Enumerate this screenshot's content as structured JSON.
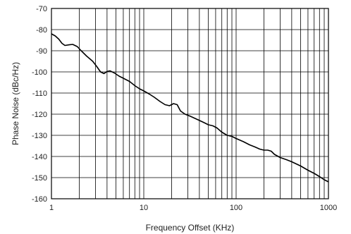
{
  "chart_data": {
    "type": "line",
    "xlabel": "Frequency Offset (KHz)",
    "ylabel": "Phase Noise (dBc/Hz)",
    "xscale": "log",
    "xlim": [
      1,
      1000
    ],
    "ylim": [
      -160,
      -70
    ],
    "grid": true,
    "x_ticks": [
      {
        "value": 1,
        "label": "1"
      },
      {
        "value": 10,
        "label": "10"
      },
      {
        "value": 100,
        "label": "100"
      },
      {
        "value": 1000,
        "label": "1000"
      }
    ],
    "y_ticks": [
      {
        "value": -70,
        "label": "-70"
      },
      {
        "value": -80,
        "label": "-80"
      },
      {
        "value": -90,
        "label": "-90"
      },
      {
        "value": -100,
        "label": "-100"
      },
      {
        "value": -110,
        "label": "-110"
      },
      {
        "value": -120,
        "label": "-120"
      },
      {
        "value": -130,
        "label": "-130"
      },
      {
        "value": -140,
        "label": "-140"
      },
      {
        "value": -150,
        "label": "-150"
      },
      {
        "value": -160,
        "label": "-160"
      }
    ],
    "series": [
      {
        "color": "#000000",
        "points": [
          [
            1.0,
            -82.0
          ],
          [
            1.1,
            -83.0
          ],
          [
            1.2,
            -84.5
          ],
          [
            1.3,
            -86.5
          ],
          [
            1.4,
            -87.5
          ],
          [
            1.55,
            -87.2
          ],
          [
            1.7,
            -87.0
          ],
          [
            1.9,
            -88.0
          ],
          [
            2.1,
            -90.0
          ],
          [
            2.4,
            -92.5
          ],
          [
            2.8,
            -95.0
          ],
          [
            3.1,
            -97.5
          ],
          [
            3.4,
            -100.0
          ],
          [
            3.7,
            -100.8
          ],
          [
            4.0,
            -99.8
          ],
          [
            4.3,
            -99.5
          ],
          [
            4.8,
            -100.5
          ],
          [
            5.4,
            -102.0
          ],
          [
            6.0,
            -103.0
          ],
          [
            7.0,
            -104.5
          ],
          [
            8.0,
            -106.5
          ],
          [
            9.0,
            -108.0
          ],
          [
            10.0,
            -109.0
          ],
          [
            11.5,
            -110.5
          ],
          [
            13.0,
            -112.0
          ],
          [
            15.0,
            -114.0
          ],
          [
            17.0,
            -115.5
          ],
          [
            19.0,
            -116.0
          ],
          [
            21.0,
            -115.0
          ],
          [
            23.0,
            -115.5
          ],
          [
            25.0,
            -118.5
          ],
          [
            28.0,
            -120.0
          ],
          [
            32.0,
            -121.0
          ],
          [
            38.0,
            -122.5
          ],
          [
            45.0,
            -124.0
          ],
          [
            50.0,
            -125.0
          ],
          [
            56.0,
            -125.5
          ],
          [
            62.0,
            -126.5
          ],
          [
            70.0,
            -128.5
          ],
          [
            80.0,
            -130.0
          ],
          [
            90.0,
            -130.5
          ],
          [
            100.0,
            -131.5
          ],
          [
            120.0,
            -133.0
          ],
          [
            140.0,
            -134.5
          ],
          [
            160.0,
            -135.5
          ],
          [
            180.0,
            -136.5
          ],
          [
            200.0,
            -137.0
          ],
          [
            220.0,
            -137.0
          ],
          [
            240.0,
            -137.5
          ],
          [
            260.0,
            -139.0
          ],
          [
            300.0,
            -140.5
          ],
          [
            350.0,
            -141.5
          ],
          [
            400.0,
            -142.5
          ],
          [
            500.0,
            -144.5
          ],
          [
            600.0,
            -146.5
          ],
          [
            700.0,
            -148.0
          ],
          [
            800.0,
            -149.5
          ],
          [
            900.0,
            -151.0
          ],
          [
            1000.0,
            -152.0
          ]
        ]
      }
    ]
  }
}
